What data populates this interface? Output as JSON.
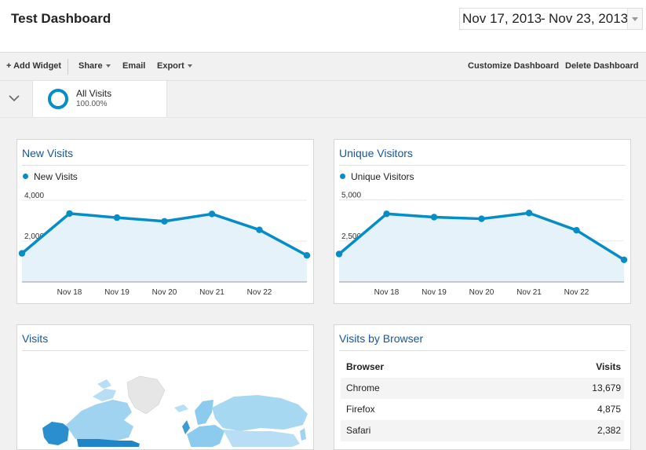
{
  "header": {
    "title": "Test Dashboard",
    "date_start": "Nov 17, 2013",
    "date_separator": "-",
    "date_end": "Nov 23, 2013"
  },
  "toolbar": {
    "add_widget": "+ Add Widget",
    "share": "Share",
    "email": "Email",
    "export": "Export",
    "customize": "Customize Dashboard",
    "delete": "Delete Dashboard"
  },
  "segment": {
    "name": "All Visits",
    "percent": "100.00%"
  },
  "colors": {
    "accent": "#058dc7",
    "area_fill": "#e6f2fa",
    "title_blue": "#15589c"
  },
  "widgets": {
    "new_visits": {
      "title": "New Visits",
      "legend": "New Visits",
      "chart_data": {
        "type": "area",
        "x": [
          "Nov 17",
          "Nov 18",
          "Nov 19",
          "Nov 20",
          "Nov 21",
          "Nov 22",
          "Nov 23"
        ],
        "x_ticks": [
          "Nov 18",
          "Nov 19",
          "Nov 20",
          "Nov 21",
          "Nov 22"
        ],
        "series": [
          {
            "name": "New Visits",
            "values": [
              1400,
              3350,
              3150,
              2970,
              3330,
              2550,
              1300
            ]
          }
        ],
        "y_ticks": [
          "4,000",
          "2,000"
        ],
        "y_tick_values": [
          4000,
          2000
        ],
        "ylim": [
          0,
          4500
        ],
        "grid": "horizontal"
      }
    },
    "unique_visitors": {
      "title": "Unique Visitors",
      "legend": "Unique Visitors",
      "chart_data": {
        "type": "area",
        "x": [
          "Nov 17",
          "Nov 18",
          "Nov 19",
          "Nov 20",
          "Nov 21",
          "Nov 22",
          "Nov 23"
        ],
        "x_ticks": [
          "Nov 18",
          "Nov 19",
          "Nov 20",
          "Nov 21",
          "Nov 22"
        ],
        "series": [
          {
            "name": "Unique Visitors",
            "values": [
              1700,
              4150,
              3950,
              3850,
              4200,
              3150,
              1350
            ]
          }
        ],
        "y_ticks": [
          "5,000",
          "2,500"
        ],
        "y_tick_values": [
          5000,
          2500
        ],
        "ylim": [
          0,
          5600
        ],
        "grid": "horizontal"
      }
    },
    "visits_map": {
      "title": "Visits"
    },
    "visits_by_browser": {
      "title": "Visits by Browser",
      "columns": [
        "Browser",
        "Visits"
      ],
      "rows": [
        {
          "browser": "Chrome",
          "visits": "13,679"
        },
        {
          "browser": "Firefox",
          "visits": "4,875"
        },
        {
          "browser": "Safari",
          "visits": "2,382"
        }
      ]
    }
  }
}
